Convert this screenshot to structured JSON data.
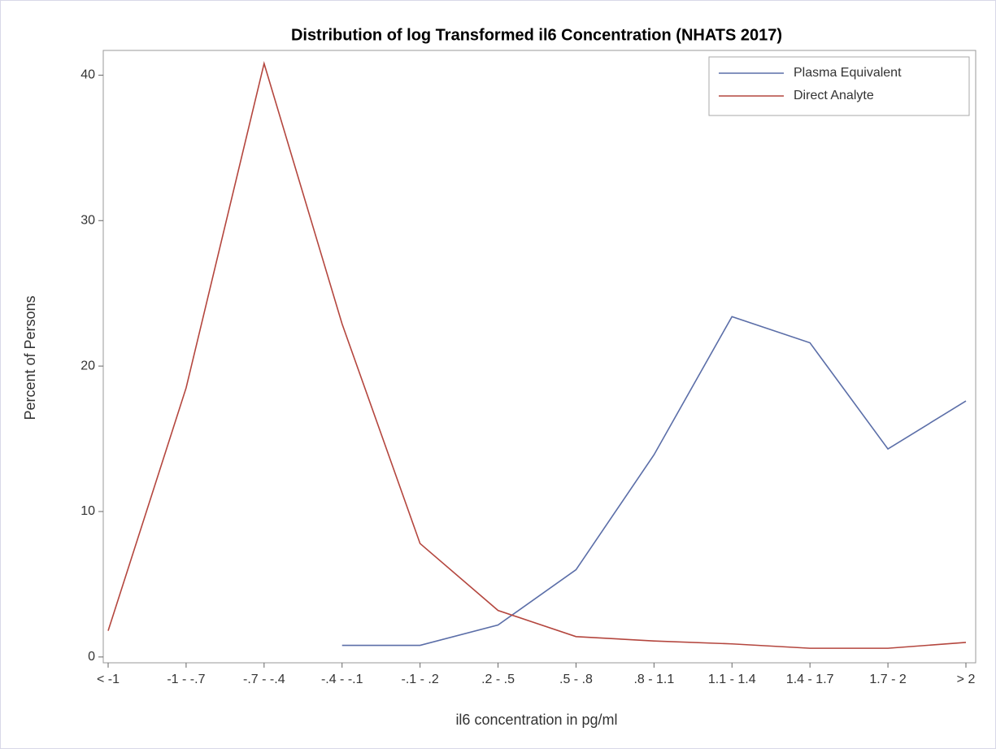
{
  "chart_data": {
    "type": "line",
    "title": "Distribution of log Transformed il6 Concentration (NHATS 2017)",
    "x_label": "il6 concentration in pg/ml",
    "y_label": "Percent of Persons",
    "categories": [
      "< -1",
      "-1 - -.7",
      "-.7 - -.4",
      "-.4 - -.1",
      "-.1 - .2",
      ".2 - .5",
      ".5 - .8",
      ".8 - 1.1",
      "1.1 - 1.4",
      "1.4 - 1.7",
      "1.7 - 2",
      "> 2"
    ],
    "series": [
      {
        "name": "Plasma Equivalent",
        "color": "#5b6ea8",
        "values": [
          null,
          null,
          null,
          0.8,
          0.8,
          2.2,
          6.0,
          13.9,
          23.4,
          21.6,
          14.3,
          17.6
        ]
      },
      {
        "name": "Direct Analyte",
        "color": "#b4463e",
        "values": [
          1.8,
          18.5,
          40.8,
          22.9,
          7.8,
          3.2,
          1.4,
          1.1,
          0.9,
          0.6,
          0.6,
          1.0
        ]
      }
    ],
    "ylim": [
      -0.4,
      41.7
    ],
    "yticks": [
      0,
      10,
      20,
      30,
      40
    ],
    "legend": "top-right"
  }
}
